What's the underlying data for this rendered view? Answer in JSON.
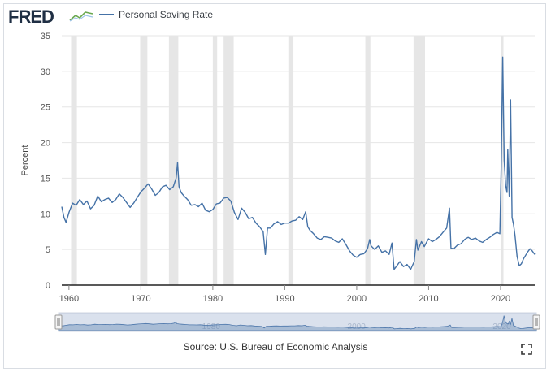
{
  "header": {
    "logo_text": "FRED",
    "logo_icon": "line-chart-icon",
    "legend_label": "Personal Saving Rate",
    "series_color": "#4572a7"
  },
  "chart_data": {
    "type": "line",
    "title": "",
    "xlabel": "",
    "ylabel": "Percent",
    "xlim": [
      1959.0,
      2024.75
    ],
    "ylim": [
      0,
      35
    ],
    "yticks": [
      0,
      5,
      10,
      15,
      20,
      25,
      30,
      35
    ],
    "xticks": [
      1960,
      1970,
      1980,
      1990,
      2000,
      2010,
      2020
    ],
    "grid": "horizontal",
    "legend": "top-left",
    "recessions": [
      [
        1960.3,
        1961.1
      ],
      [
        1969.9,
        1970.9
      ],
      [
        1973.9,
        1975.2
      ],
      [
        1980.0,
        1980.6
      ],
      [
        1981.5,
        1982.9
      ],
      [
        1990.5,
        1991.2
      ],
      [
        2001.2,
        2001.9
      ],
      [
        2007.9,
        2009.5
      ],
      [
        2020.1,
        2020.4
      ]
    ],
    "series": [
      {
        "x": [
          1959.0,
          1959.3,
          1959.6,
          1960.0,
          1960.5,
          1961.0,
          1961.5,
          1962.0,
          1962.5,
          1963.0,
          1963.5,
          1964.0,
          1964.5,
          1965.0,
          1965.5,
          1966.0,
          1966.5,
          1967.0,
          1967.5,
          1968.0,
          1968.5,
          1969.0,
          1969.5,
          1970.0,
          1970.5,
          1971.0,
          1971.5,
          1972.0,
          1972.5,
          1973.0,
          1973.5,
          1974.0,
          1974.5,
          1974.9,
          1975.1,
          1975.3,
          1975.6,
          1976.0,
          1976.5,
          1977.0,
          1977.5,
          1978.0,
          1978.5,
          1979.0,
          1979.5,
          1980.0,
          1980.5,
          1981.0,
          1981.5,
          1982.0,
          1982.5,
          1983.0,
          1983.5,
          1984.0,
          1984.5,
          1985.0,
          1985.5,
          1986.0,
          1986.5,
          1987.0,
          1987.3,
          1987.6,
          1988.0,
          1988.5,
          1989.0,
          1989.5,
          1990.0,
          1990.5,
          1991.0,
          1991.5,
          1992.0,
          1992.5,
          1992.9,
          1993.2,
          1993.5,
          1994.0,
          1994.5,
          1995.0,
          1995.5,
          1996.0,
          1996.5,
          1997.0,
          1997.5,
          1998.0,
          1998.5,
          1999.0,
          1999.5,
          2000.0,
          2000.5,
          2001.0,
          2001.5,
          2001.8,
          2002.0,
          2002.5,
          2003.0,
          2003.5,
          2004.0,
          2004.5,
          2004.9,
          2005.2,
          2005.5,
          2006.0,
          2006.5,
          2007.0,
          2007.5,
          2008.0,
          2008.3,
          2008.5,
          2009.0,
          2009.4,
          2009.7,
          2010.0,
          2010.5,
          2011.0,
          2011.5,
          2012.0,
          2012.5,
          2012.9,
          2013.1,
          2013.5,
          2014.0,
          2014.5,
          2015.0,
          2015.5,
          2016.0,
          2016.5,
          2017.0,
          2017.5,
          2018.0,
          2018.5,
          2019.0,
          2019.5,
          2019.9,
          2020.1,
          2020.3,
          2020.5,
          2020.7,
          2020.9,
          2021.0,
          2021.2,
          2021.4,
          2021.6,
          2021.8,
          2022.0,
          2022.3,
          2022.6,
          2022.9,
          2023.2,
          2023.5,
          2023.8,
          2024.1,
          2024.4,
          2024.75
        ],
        "y": [
          11.0,
          9.5,
          8.8,
          10.2,
          11.5,
          11.2,
          12.0,
          11.3,
          11.8,
          10.7,
          11.2,
          12.5,
          11.7,
          12.0,
          12.2,
          11.6,
          12.0,
          12.8,
          12.3,
          11.6,
          10.9,
          11.5,
          12.3,
          13.1,
          13.6,
          14.2,
          13.5,
          12.6,
          13.0,
          13.8,
          14.0,
          13.4,
          13.8,
          15.0,
          17.2,
          13.8,
          13.0,
          12.5,
          12.0,
          11.2,
          11.3,
          11.0,
          11.5,
          10.5,
          10.3,
          10.6,
          11.4,
          11.5,
          12.2,
          12.3,
          11.8,
          10.2,
          9.2,
          10.8,
          10.2,
          9.3,
          9.5,
          8.7,
          8.2,
          7.5,
          4.3,
          8.0,
          8.0,
          8.6,
          8.9,
          8.5,
          8.7,
          8.7,
          9.0,
          9.1,
          9.6,
          9.2,
          10.3,
          8.2,
          7.7,
          7.2,
          6.6,
          6.4,
          6.8,
          6.7,
          6.6,
          6.2,
          6.0,
          6.5,
          5.7,
          4.8,
          4.2,
          3.9,
          4.3,
          4.4,
          5.1,
          6.4,
          5.5,
          5.0,
          5.5,
          4.6,
          4.8,
          4.3,
          5.9,
          2.2,
          2.6,
          3.3,
          2.6,
          2.9,
          2.2,
          3.3,
          6.4,
          4.9,
          6.1,
          5.4,
          6.0,
          6.5,
          6.1,
          6.4,
          6.8,
          7.4,
          8.0,
          10.8,
          5.2,
          5.1,
          5.6,
          5.8,
          6.4,
          6.7,
          6.4,
          6.6,
          6.2,
          6.0,
          6.4,
          6.7,
          7.1,
          7.4,
          7.2,
          17.0,
          32.0,
          17.5,
          14.0,
          13.0,
          19.0,
          12.5,
          26.0,
          9.5,
          8.5,
          7.0,
          4.0,
          2.7,
          3.0,
          3.7,
          4.2,
          4.7,
          5.1,
          4.8,
          4.3
        ]
      }
    ]
  },
  "navigator": {
    "tick_labels": [
      "1980",
      "2000",
      "2020"
    ]
  },
  "footer": {
    "source_text": "Source: U.S. Bureau of Economic Analysis",
    "fullscreen_icon": "fullscreen-icon"
  }
}
